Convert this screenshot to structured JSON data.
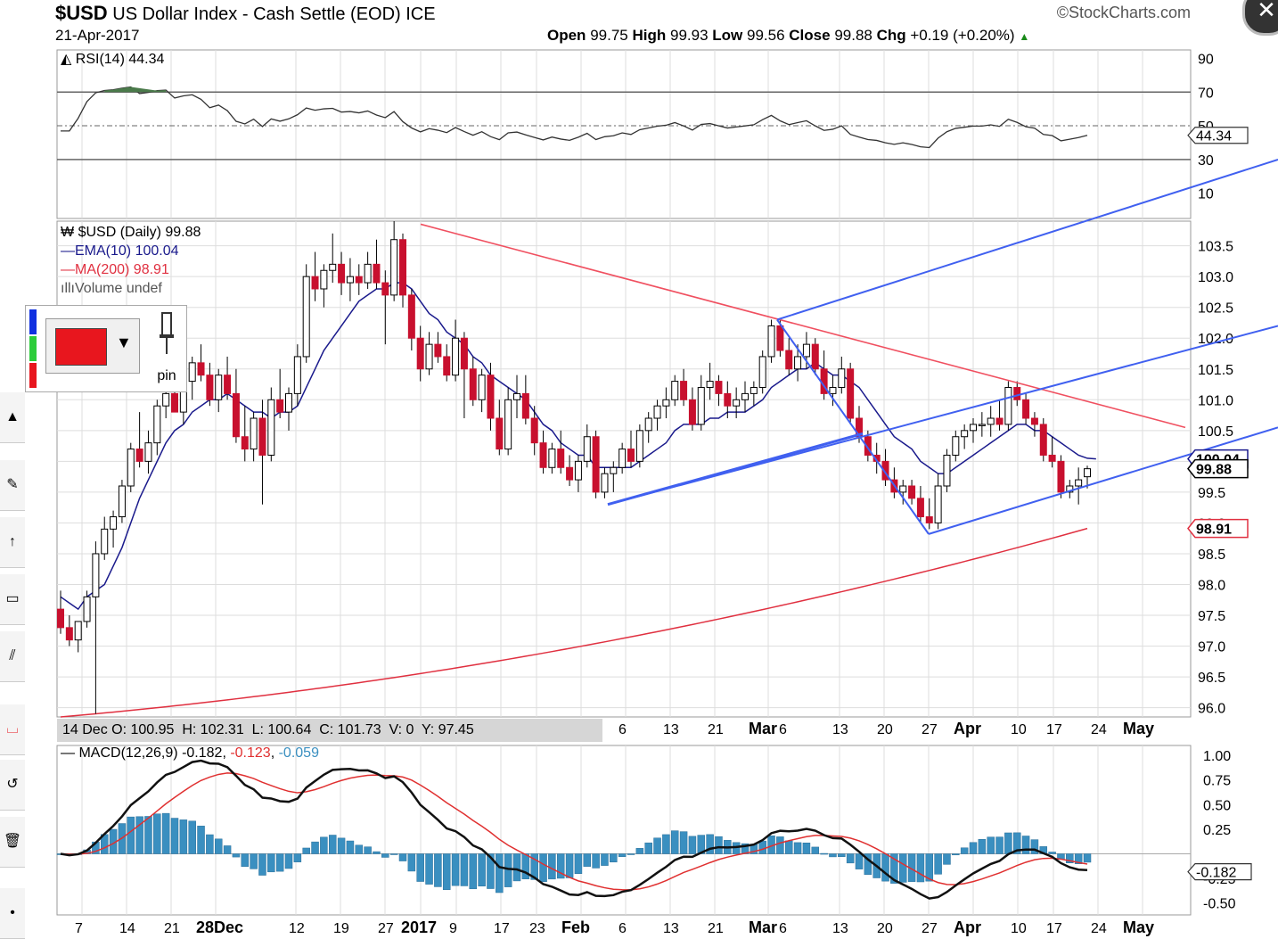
{
  "header": {
    "symbol": "$USD",
    "name": "US Dollar Index - Cash Settle (EOD)",
    "exchange": "ICE",
    "date": "21-Apr-2017",
    "brand": "StockCharts.com",
    "open_label": "Open",
    "open": "99.75",
    "high_label": "High",
    "high": "99.93",
    "low_label": "Low",
    "low": "99.56",
    "close_label": "Close",
    "close": "99.88",
    "chg_label": "Chg",
    "chg": "+0.19 (+0.20%)"
  },
  "legend": {
    "rsi": "RSI(14) 44.34",
    "price": "$USD (Daily) 99.88",
    "ema": "EMA(10) 100.04",
    "ma": "MA(200) 98.91",
    "volume": "Volume undef",
    "macd_name": "MACD(12,26,9)",
    "macd_v1": "-0.182",
    "macd_v2": "-0.123",
    "macd_v3": "-0.059"
  },
  "ohlc_readout": {
    "date": "14 Dec",
    "o": "O: 100.95",
    "h": "H: 102.31",
    "l": "L: 100.64",
    "c": "C: 101.73",
    "v": "V: 0",
    "y": "Y: 97.45"
  },
  "toolbox": {
    "pin_label": "pin",
    "color": "#e8161e"
  },
  "colors": {
    "up": "#ffffff",
    "down": "#c8102e",
    "ema": "#1a1a8c",
    "ma": "#e03040",
    "trend_red": "#f05060",
    "trend_blue": "#4060f0",
    "macd": "#111111",
    "signal": "#e03030",
    "hist": "#3a8fc0",
    "rsi": "#333333",
    "rsi_fill": "#4a7a4a"
  },
  "chart_data": {
    "type": "candlestick",
    "title": "$USD US Dollar Index - Cash Settle (EOD)",
    "x_tick_labels": [
      "7",
      "14",
      "21",
      "28Dec",
      "12",
      "19",
      "27",
      "2017",
      "9",
      "17",
      "23",
      "Feb",
      "6",
      "13",
      "21",
      "Mar",
      "6",
      "13",
      "20",
      "27",
      "Apr",
      "10",
      "17",
      "24",
      "May"
    ],
    "price": {
      "y_ticks": [
        96.0,
        96.5,
        97.0,
        97.5,
        98.0,
        98.5,
        99.0,
        99.5,
        100.0,
        100.5,
        101.0,
        101.5,
        102.0,
        102.5,
        103.0,
        103.5
      ],
      "ylim": [
        95.85,
        103.9
      ],
      "last_close_label": "99.88",
      "ema_label": "100.04",
      "ma_label": "98.91",
      "ohlc": [
        [
          97.6,
          97.9,
          97.2,
          97.3
        ],
        [
          97.3,
          97.5,
          97.0,
          97.1
        ],
        [
          97.1,
          97.4,
          96.9,
          97.4
        ],
        [
          97.4,
          97.9,
          97.3,
          97.8
        ],
        [
          97.8,
          98.7,
          95.9,
          98.5
        ],
        [
          98.5,
          99.1,
          98.4,
          98.9
        ],
        [
          98.9,
          99.2,
          98.6,
          99.1
        ],
        [
          99.1,
          99.7,
          99.0,
          99.6
        ],
        [
          99.6,
          100.3,
          99.5,
          100.2
        ],
        [
          100.2,
          100.8,
          99.9,
          100.0
        ],
        [
          100.0,
          100.5,
          99.8,
          100.3
        ],
        [
          100.3,
          101.0,
          100.1,
          100.9
        ],
        [
          100.9,
          101.3,
          100.7,
          101.1
        ],
        [
          101.1,
          101.4,
          100.8,
          100.8
        ],
        [
          100.8,
          101.5,
          100.6,
          101.3
        ],
        [
          101.3,
          101.7,
          101.0,
          101.6
        ],
        [
          101.6,
          101.9,
          101.3,
          101.4
        ],
        [
          101.4,
          101.6,
          100.9,
          101.0
        ],
        [
          101.0,
          101.5,
          100.8,
          101.4
        ],
        [
          101.4,
          101.7,
          101.0,
          101.1
        ],
        [
          101.1,
          101.5,
          100.3,
          100.4
        ],
        [
          100.4,
          100.9,
          100.0,
          100.2
        ],
        [
          100.2,
          100.8,
          100.0,
          100.7
        ],
        [
          100.7,
          101.0,
          99.3,
          100.1
        ],
        [
          100.1,
          101.2,
          100.0,
          101.0
        ],
        [
          101.0,
          101.5,
          100.7,
          100.8
        ],
        [
          100.8,
          101.2,
          100.5,
          101.1
        ],
        [
          101.1,
          101.9,
          100.9,
          101.7
        ],
        [
          101.7,
          103.2,
          101.6,
          103.0
        ],
        [
          103.0,
          103.4,
          102.6,
          102.8
        ],
        [
          102.8,
          103.2,
          102.5,
          103.1
        ],
        [
          103.1,
          103.7,
          102.9,
          103.2
        ],
        [
          103.2,
          103.4,
          102.7,
          102.9
        ],
        [
          102.9,
          103.3,
          102.6,
          103.0
        ],
        [
          103.0,
          103.2,
          102.7,
          102.9
        ],
        [
          102.9,
          103.4,
          102.8,
          103.2
        ],
        [
          103.2,
          103.6,
          102.8,
          102.9
        ],
        [
          102.9,
          103.1,
          101.9,
          102.7
        ],
        [
          102.7,
          103.9,
          102.6,
          103.6
        ],
        [
          103.6,
          103.7,
          102.5,
          102.7
        ],
        [
          102.7,
          102.8,
          101.8,
          102.0
        ],
        [
          102.0,
          102.2,
          101.3,
          101.5
        ],
        [
          101.5,
          102.1,
          101.4,
          101.9
        ],
        [
          101.9,
          102.1,
          101.6,
          101.7
        ],
        [
          101.7,
          101.9,
          101.3,
          101.4
        ],
        [
          101.4,
          102.3,
          101.3,
          102.0
        ],
        [
          102.0,
          102.1,
          100.7,
          101.5
        ],
        [
          101.5,
          101.7,
          100.9,
          101.0
        ],
        [
          101.0,
          101.5,
          100.8,
          101.4
        ],
        [
          101.4,
          101.6,
          100.5,
          100.7
        ],
        [
          100.7,
          101.0,
          100.1,
          100.2
        ],
        [
          100.2,
          101.2,
          100.1,
          101.0
        ],
        [
          101.0,
          101.4,
          100.7,
          101.1
        ],
        [
          101.1,
          101.4,
          100.6,
          100.7
        ],
        [
          100.7,
          100.9,
          100.1,
          100.3
        ],
        [
          100.3,
          100.5,
          99.8,
          99.9
        ],
        [
          99.9,
          100.3,
          99.8,
          100.2
        ],
        [
          100.2,
          100.5,
          99.8,
          99.9
        ],
        [
          99.9,
          100.1,
          99.6,
          99.7
        ],
        [
          99.7,
          100.1,
          99.5,
          100.0
        ],
        [
          100.0,
          100.6,
          99.9,
          100.4
        ],
        [
          100.4,
          100.5,
          99.4,
          99.5
        ],
        [
          99.5,
          99.9,
          99.4,
          99.8
        ],
        [
          99.8,
          100.0,
          99.5,
          99.9
        ],
        [
          99.9,
          100.3,
          99.8,
          100.2
        ],
        [
          100.2,
          100.5,
          99.9,
          100.0
        ],
        [
          100.0,
          100.6,
          99.9,
          100.5
        ],
        [
          100.5,
          100.8,
          100.3,
          100.7
        ],
        [
          100.7,
          101.0,
          100.5,
          100.9
        ],
        [
          100.9,
          101.2,
          100.7,
          101.0
        ],
        [
          101.0,
          101.4,
          100.9,
          101.3
        ],
        [
          101.3,
          101.5,
          100.9,
          101.0
        ],
        [
          101.0,
          101.2,
          100.5,
          100.6
        ],
        [
          100.6,
          101.4,
          100.5,
          101.2
        ],
        [
          101.2,
          101.6,
          101.0,
          101.3
        ],
        [
          101.3,
          101.4,
          100.9,
          101.1
        ],
        [
          101.1,
          101.3,
          100.7,
          100.9
        ],
        [
          100.9,
          101.2,
          100.7,
          101.0
        ],
        [
          101.0,
          101.3,
          100.8,
          101.1
        ],
        [
          101.1,
          101.3,
          100.9,
          101.2
        ],
        [
          101.2,
          101.8,
          101.1,
          101.7
        ],
        [
          101.7,
          102.3,
          101.6,
          102.2
        ],
        [
          102.2,
          102.3,
          101.7,
          101.8
        ],
        [
          101.8,
          102.0,
          101.4,
          101.5
        ],
        [
          101.5,
          101.9,
          101.3,
          101.7
        ],
        [
          101.7,
          102.1,
          101.5,
          101.9
        ],
        [
          101.9,
          102.0,
          101.4,
          101.5
        ],
        [
          101.5,
          101.8,
          101.0,
          101.1
        ],
        [
          101.1,
          101.4,
          100.9,
          101.2
        ],
        [
          101.2,
          101.7,
          101.1,
          101.5
        ],
        [
          101.5,
          101.6,
          100.6,
          100.7
        ],
        [
          100.7,
          100.9,
          100.3,
          100.4
        ],
        [
          100.4,
          100.5,
          100.0,
          100.1
        ],
        [
          100.1,
          100.3,
          99.8,
          100.0
        ],
        [
          100.0,
          100.2,
          99.6,
          99.7
        ],
        [
          99.7,
          99.9,
          99.4,
          99.5
        ],
        [
          99.5,
          99.7,
          99.3,
          99.6
        ],
        [
          99.6,
          99.7,
          99.3,
          99.4
        ],
        [
          99.4,
          99.6,
          99.0,
          99.1
        ],
        [
          99.1,
          99.4,
          98.9,
          99.0
        ],
        [
          99.0,
          99.8,
          98.9,
          99.6
        ],
        [
          99.6,
          100.2,
          99.5,
          100.1
        ],
        [
          100.1,
          100.5,
          100.0,
          100.4
        ],
        [
          100.4,
          100.6,
          100.2,
          100.5
        ],
        [
          100.5,
          100.7,
          100.3,
          100.6
        ],
        [
          100.6,
          100.8,
          100.4,
          100.6
        ],
        [
          100.6,
          100.9,
          100.4,
          100.7
        ],
        [
          100.7,
          101.0,
          100.5,
          100.6
        ],
        [
          100.6,
          101.3,
          100.5,
          101.2
        ],
        [
          101.2,
          101.3,
          100.9,
          101.0
        ],
        [
          101.0,
          101.1,
          100.6,
          100.7
        ],
        [
          100.7,
          100.8,
          100.4,
          100.6
        ],
        [
          100.6,
          100.7,
          100.0,
          100.1
        ],
        [
          100.1,
          100.4,
          99.9,
          100.0
        ],
        [
          100.0,
          100.1,
          99.4,
          99.5
        ],
        [
          99.5,
          99.7,
          99.4,
          99.6
        ],
        [
          99.6,
          99.9,
          99.3,
          99.7
        ],
        [
          99.75,
          99.93,
          99.56,
          99.88
        ]
      ],
      "ema10": [
        97.8,
        97.7,
        97.6,
        97.8,
        97.9,
        98.0,
        98.3,
        98.6,
        99.0,
        99.4,
        99.7,
        100.0,
        100.3,
        100.5,
        100.6,
        100.8,
        100.9,
        101.0,
        101.0,
        101.1,
        101.0,
        100.9,
        100.8,
        100.8,
        100.7,
        100.8,
        100.8,
        100.9,
        101.2,
        101.5,
        101.8,
        102.0,
        102.2,
        102.4,
        102.6,
        102.7,
        102.8,
        102.8,
        102.9,
        102.9,
        102.8,
        102.6,
        102.4,
        102.3,
        102.1,
        102.0,
        101.9,
        101.7,
        101.6,
        101.4,
        101.3,
        101.2,
        101.1,
        101.0,
        100.8,
        100.6,
        100.5,
        100.3,
        100.2,
        100.1,
        100.1,
        99.9,
        99.9,
        99.9,
        99.9,
        99.9,
        100.0,
        100.1,
        100.2,
        100.3,
        100.5,
        100.6,
        100.6,
        100.6,
        100.7,
        100.7,
        100.8,
        100.8,
        100.8,
        100.9,
        101.0,
        101.2,
        101.3,
        101.4,
        101.5,
        101.5,
        101.6,
        101.5,
        101.4,
        101.4,
        101.3,
        101.2,
        101.0,
        100.8,
        100.6,
        100.4,
        100.3,
        100.2,
        100.0,
        99.9,
        99.8,
        99.8,
        99.9,
        100.0,
        100.1,
        100.2,
        100.3,
        100.4,
        100.5,
        100.6,
        100.6,
        100.5,
        100.5,
        100.4,
        100.3,
        100.2,
        100.1,
        100.05,
        100.04
      ]
    },
    "ma200": {
      "start": 95.85,
      "end": 98.91
    },
    "rsi": {
      "y_ticks": [
        10,
        30,
        50,
        70,
        90
      ],
      "last": "44.34",
      "overbought": 70,
      "oversold": 30
    },
    "macd": {
      "y_ticks": [
        1.0,
        0.75,
        0.5,
        0.25,
        -0.25,
        -0.5
      ],
      "ylim": [
        -0.62,
        1.1
      ],
      "macd_last": "-0.182",
      "signal_last": "-0.123",
      "hist_last": "-0.059"
    }
  }
}
